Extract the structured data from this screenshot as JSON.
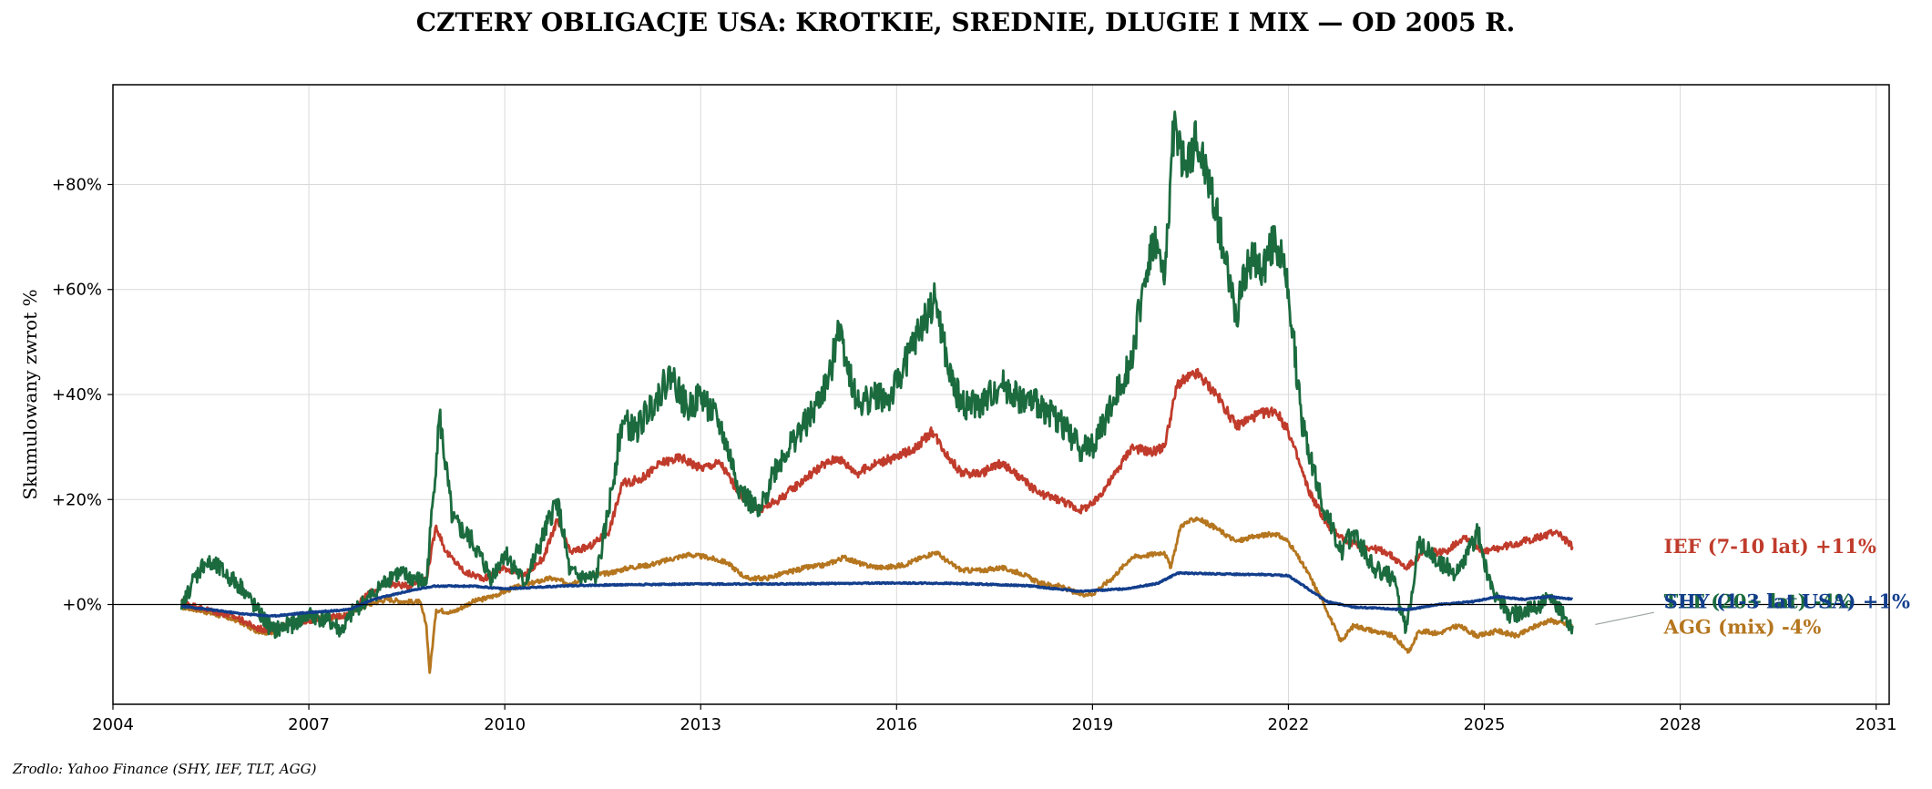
{
  "chart_data": {
    "type": "line",
    "title": "CZTERY OBLIGACJE USA: KROTKIE, SREDNIE, DLUGIE I MIX — OD 2005 R.",
    "ylabel": "Skumulowany zwrot %",
    "xlabel": "",
    "source": "Zrodlo: Yahoo Finance (SHY, IEF, TLT, AGG)",
    "xlim": [
      2004,
      2031.2
    ],
    "ylim": [
      -19,
      99
    ],
    "x_ticks": [
      2004,
      2007,
      2010,
      2013,
      2016,
      2019,
      2022,
      2025,
      2028,
      2031
    ],
    "y_ticks": [
      {
        "value": 0,
        "label": "+0%"
      },
      {
        "value": 20,
        "label": "+20%"
      },
      {
        "value": 40,
        "label": "+40%"
      },
      {
        "value": 60,
        "label": "+60%"
      },
      {
        "value": 80,
        "label": "+80%"
      }
    ],
    "grid": true,
    "series": [
      {
        "name": "AGG",
        "end_label": "AGG (mix)  -4%",
        "color": "#b5761f",
        "x": [
          2005.05,
          2005.3,
          2005.6,
          2005.9,
          2006.2,
          2006.45,
          2006.7,
          2007.0,
          2007.3,
          2007.6,
          2007.9,
          2008.2,
          2008.5,
          2008.7,
          2008.8,
          2008.85,
          2008.95,
          2009.2,
          2009.5,
          2009.8,
          2010.1,
          2010.4,
          2010.7,
          2011.0,
          2011.3,
          2011.6,
          2011.9,
          2012.2,
          2012.5,
          2012.8,
          2013.1,
          2013.4,
          2013.7,
          2014.0,
          2014.3,
          2014.6,
          2014.9,
          2015.2,
          2015.5,
          2015.8,
          2016.1,
          2016.4,
          2016.6,
          2016.8,
          2017.0,
          2017.3,
          2017.6,
          2017.9,
          2018.2,
          2018.5,
          2018.8,
          2019.0,
          2019.3,
          2019.6,
          2019.9,
          2020.1,
          2020.2,
          2020.35,
          2020.6,
          2020.9,
          2021.2,
          2021.5,
          2021.8,
          2022.0,
          2022.3,
          2022.55,
          2022.8,
          2023.0,
          2023.3,
          2023.6,
          2023.85,
          2024.0,
          2024.3,
          2024.6,
          2024.9,
          2025.2,
          2025.5,
          2025.8,
          2026.0,
          2026.35
        ],
        "y": [
          -0.5,
          -1.0,
          -2.0,
          -3.0,
          -5.0,
          -5.5,
          -3.5,
          -3.0,
          -2.5,
          -2.0,
          0.0,
          1.0,
          0.5,
          0.5,
          -4.0,
          -13.0,
          -1.0,
          -1.5,
          0.5,
          1.5,
          3.0,
          4.0,
          5.0,
          4.0,
          5.5,
          6.0,
          7.0,
          7.5,
          8.5,
          9.5,
          9.0,
          8.0,
          5.0,
          5.0,
          6.0,
          7.0,
          7.5,
          9.0,
          7.5,
          7.0,
          7.5,
          9.0,
          10.0,
          8.0,
          6.5,
          6.5,
          7.0,
          6.0,
          4.0,
          3.5,
          2.0,
          2.0,
          5.0,
          9.0,
          9.5,
          10.0,
          7.0,
          15.0,
          16.5,
          14.5,
          12.0,
          13.0,
          13.5,
          12.0,
          6.0,
          0.0,
          -7.0,
          -4.0,
          -5.0,
          -6.0,
          -9.0,
          -5.0,
          -5.5,
          -4.0,
          -6.0,
          -5.0,
          -6.0,
          -4.0,
          -3.0,
          -4.0
        ],
        "line_width": 2.8
      },
      {
        "name": "IEF",
        "end_label": "IEF (7-10 lat)  +11%",
        "color": "#c03b2b",
        "x": [
          2005.05,
          2005.3,
          2005.6,
          2005.9,
          2006.2,
          2006.45,
          2006.7,
          2007.0,
          2007.3,
          2007.6,
          2007.9,
          2008.2,
          2008.5,
          2008.8,
          2008.95,
          2009.1,
          2009.4,
          2009.7,
          2010.0,
          2010.3,
          2010.6,
          2010.8,
          2011.0,
          2011.3,
          2011.6,
          2011.8,
          2012.1,
          2012.4,
          2012.7,
          2013.0,
          2013.3,
          2013.6,
          2013.9,
          2014.2,
          2014.5,
          2014.8,
          2015.1,
          2015.4,
          2015.7,
          2016.0,
          2016.3,
          2016.55,
          2016.8,
          2017.0,
          2017.3,
          2017.6,
          2017.9,
          2018.2,
          2018.5,
          2018.8,
          2019.0,
          2019.3,
          2019.6,
          2019.9,
          2020.1,
          2020.3,
          2020.6,
          2020.9,
          2021.2,
          2021.5,
          2021.8,
          2022.0,
          2022.3,
          2022.6,
          2022.9,
          2023.2,
          2023.5,
          2023.8,
          2024.1,
          2024.4,
          2024.7,
          2025.0,
          2025.3,
          2025.6,
          2025.9,
          2026.1,
          2026.35
        ],
        "y": [
          0.5,
          -0.5,
          -1.5,
          -2.5,
          -4.5,
          -5.0,
          -3.5,
          -3.0,
          -2.5,
          -2.0,
          2.0,
          4.0,
          3.5,
          5.0,
          15.0,
          10.0,
          6.0,
          5.0,
          7.0,
          5.5,
          9.0,
          16.0,
          10.0,
          11.0,
          14.0,
          23.0,
          24.0,
          27.0,
          28.0,
          26.0,
          27.0,
          21.0,
          18.0,
          20.0,
          23.0,
          26.0,
          28.0,
          25.0,
          27.0,
          28.0,
          30.0,
          33.0,
          28.0,
          25.0,
          25.0,
          27.0,
          24.0,
          21.0,
          20.0,
          18.0,
          19.0,
          24.0,
          30.0,
          29.0,
          30.0,
          42.0,
          44.0,
          40.0,
          34.0,
          36.0,
          37.0,
          33.0,
          22.0,
          15.0,
          12.0,
          11.0,
          10.0,
          7.0,
          10.0,
          10.0,
          13.0,
          10.0,
          11.0,
          12.0,
          13.0,
          14.0,
          11.0
        ],
        "line_width": 2.8
      },
      {
        "name": "TLT",
        "end_label": "TLT (20+ lat)  -4%",
        "color": "#1b6b3e",
        "x": [
          2005.05,
          2005.2,
          2005.4,
          2005.6,
          2005.8,
          2006.0,
          2006.2,
          2006.45,
          2006.7,
          2007.0,
          2007.3,
          2007.5,
          2007.7,
          2008.0,
          2008.3,
          2008.6,
          2008.8,
          2008.9,
          2009.0,
          2009.2,
          2009.5,
          2009.8,
          2010.0,
          2010.3,
          2010.5,
          2010.8,
          2011.0,
          2011.2,
          2011.4,
          2011.55,
          2011.8,
          2012.0,
          2012.3,
          2012.55,
          2012.8,
          2013.0,
          2013.3,
          2013.6,
          2013.9,
          2014.1,
          2014.4,
          2014.7,
          2015.0,
          2015.1,
          2015.4,
          2015.7,
          2015.9,
          2016.2,
          2016.5,
          2016.6,
          2016.8,
          2017.0,
          2017.3,
          2017.6,
          2017.9,
          2018.2,
          2018.5,
          2018.8,
          2019.0,
          2019.3,
          2019.6,
          2019.8,
          2019.95,
          2020.1,
          2020.25,
          2020.4,
          2020.6,
          2020.8,
          2021.0,
          2021.2,
          2021.4,
          2021.6,
          2021.8,
          2022.0,
          2022.2,
          2022.5,
          2022.8,
          2023.0,
          2023.3,
          2023.6,
          2023.8,
          2024.0,
          2024.3,
          2024.6,
          2024.9,
          2025.1,
          2025.4,
          2025.7,
          2026.0,
          2026.35
        ],
        "y": [
          -1.0,
          4.0,
          8.0,
          7.0,
          5.0,
          3.0,
          -1.0,
          -5.0,
          -4.0,
          -2.0,
          -3.0,
          -5.0,
          -1.0,
          2.0,
          6.0,
          5.0,
          4.0,
          20.0,
          36.0,
          16.0,
          12.0,
          5.0,
          10.0,
          4.0,
          10.0,
          20.0,
          6.0,
          5.0,
          5.0,
          15.0,
          35.0,
          33.0,
          39.0,
          44.0,
          37.0,
          40.0,
          34.0,
          22.0,
          17.0,
          25.0,
          31.0,
          36.0,
          44.0,
          54.0,
          38.0,
          40.0,
          39.0,
          48.0,
          56.0,
          58.0,
          44.0,
          38.0,
          38.0,
          42.0,
          39.0,
          38.0,
          35.0,
          30.0,
          30.0,
          38.0,
          47.0,
          62.0,
          70.0,
          61.0,
          92.0,
          83.0,
          88.0,
          80.0,
          68.0,
          55.0,
          66.0,
          64.0,
          70.0,
          60.0,
          35.0,
          20.0,
          10.0,
          14.0,
          7.0,
          5.0,
          -5.0,
          12.0,
          8.0,
          6.0,
          14.0,
          3.0,
          -2.0,
          -1.0,
          1.0,
          -4.0
        ],
        "line_width": 2.8
      },
      {
        "name": "SHY",
        "end_label": "SHY (1-3 lat USA)  +1%",
        "color": "#123e8c",
        "x": [
          2005.05,
          2005.5,
          2006.0,
          2006.45,
          2007.0,
          2007.6,
          2008.0,
          2008.5,
          2008.9,
          2009.5,
          2010.0,
          2010.5,
          2011.0,
          2012.0,
          2013.0,
          2014.0,
          2015.0,
          2016.0,
          2017.0,
          2018.0,
          2018.8,
          2019.5,
          2020.0,
          2020.3,
          2021.0,
          2021.6,
          2022.0,
          2022.3,
          2022.6,
          2023.0,
          2023.5,
          2023.8,
          2024.3,
          2024.8,
          2025.2,
          2025.6,
          2026.0,
          2026.35
        ],
        "y": [
          -0.3,
          -1.0,
          -1.8,
          -2.2,
          -1.5,
          -1.0,
          1.0,
          2.5,
          3.5,
          3.5,
          3.0,
          3.3,
          3.6,
          3.8,
          3.9,
          3.9,
          4.0,
          4.1,
          4.0,
          3.6,
          2.5,
          3.0,
          4.0,
          6.0,
          5.8,
          5.7,
          5.5,
          3.0,
          0.5,
          -0.5,
          -0.8,
          -1.0,
          0.0,
          0.5,
          1.5,
          1.0,
          1.5,
          1.0
        ],
        "line_width": 3.2
      }
    ],
    "end_labels": [
      {
        "series": "IEF",
        "text": "IEF (7-10 lat)  +11%",
        "color": "#c03b2b",
        "x": 2027.75,
        "y": 11.0
      },
      {
        "series": "TLT",
        "text": "TLT (20+ lat)  -4%",
        "color": "#1b6b3e",
        "x": 2027.75,
        "y": 0.5
      },
      {
        "series": "SHY",
        "text": "SHY (1-3 lat USA)  +1%",
        "color": "#123e8c",
        "x": 2027.75,
        "y": 0.5
      },
      {
        "series": "AGG",
        "text": "AGG (mix)  -4%",
        "color": "#b5761f",
        "x": 2027.75,
        "y": -4.3
      }
    ]
  }
}
